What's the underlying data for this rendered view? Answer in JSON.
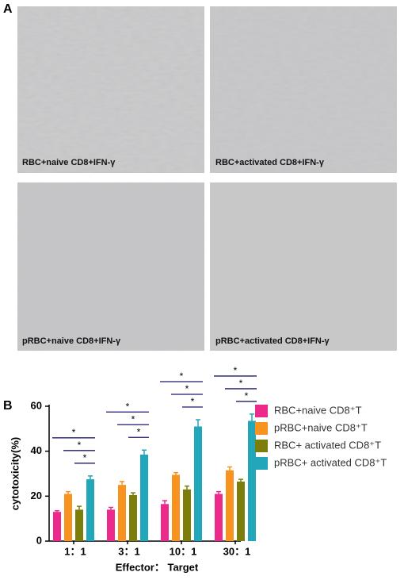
{
  "panel_a": {
    "label": "A",
    "images": [
      {
        "caption": "RBC+naive CD8+IFN-γ"
      },
      {
        "caption": "RBC+activated CD8+IFN-γ"
      },
      {
        "caption": "pRBC+naive CD8+IFN-γ"
      },
      {
        "caption": "pRBC+activated CD8+IFN-γ"
      }
    ]
  },
  "panel_b": {
    "label": "B"
  },
  "chart_data": {
    "type": "bar",
    "ylabel": "cytotoxicity(%)",
    "xlabel": "Effector： Target",
    "categories": [
      "1：1",
      "3：1",
      "10：1",
      "30：1"
    ],
    "ylim": [
      0,
      60
    ],
    "yticks": [
      0,
      20,
      40,
      60
    ],
    "series": [
      {
        "name": "RBC+naive CD8⁺T",
        "color": "#ec2a8c",
        "values": [
          13,
          14,
          16.5,
          21
        ],
        "errors": [
          0.5,
          1,
          1.5,
          1
        ]
      },
      {
        "name": "pRBC+naive CD8⁺T",
        "color": "#f7931e",
        "values": [
          21,
          25,
          29.5,
          31.5
        ],
        "errors": [
          1,
          1.5,
          1,
          1.5
        ]
      },
      {
        "name": "RBC+ activated CD8⁺T",
        "color": "#7d7d0c",
        "values": [
          14,
          20.5,
          23,
          26.5
        ],
        "errors": [
          1.5,
          1,
          1.5,
          1
        ]
      },
      {
        "name": "pRBC+ activated CD8⁺T",
        "color": "#21a7b9",
        "values": [
          27.5,
          38.5,
          51,
          53.5
        ],
        "errors": [
          1.5,
          2,
          3,
          3
        ]
      }
    ],
    "significance_labels": [
      [
        "*",
        "*",
        "*"
      ],
      [
        "*",
        "*",
        "*"
      ],
      [
        "*",
        "*",
        "*"
      ],
      [
        "*",
        "*",
        "*"
      ]
    ]
  }
}
